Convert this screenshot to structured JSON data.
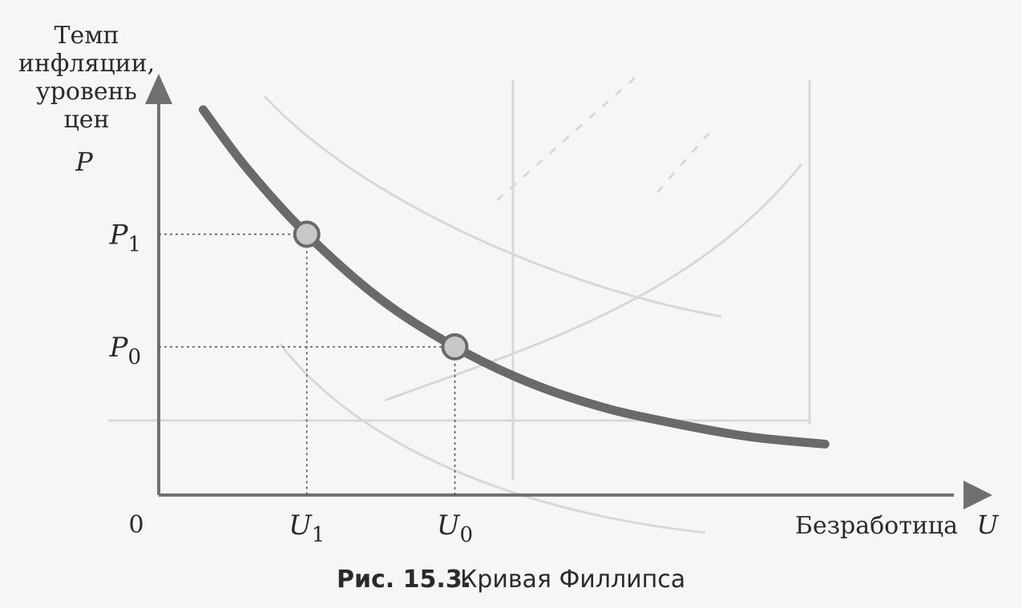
{
  "chart_data": {
    "type": "line",
    "ylabel_lines": [
      "Темп",
      "инфляции,",
      "уровень",
      "цен"
    ],
    "ylabel_symbol": "P",
    "xlabel": "Безработица",
    "xlabel_symbol": "U",
    "origin_label": "0",
    "x_ticks": [
      {
        "letter": "U",
        "sub": "1",
        "value": 1.0
      },
      {
        "letter": "U",
        "sub": "0",
        "value": 2.0
      }
    ],
    "y_ticks": [
      {
        "letter": "P",
        "sub": "1",
        "value": 2.2
      },
      {
        "letter": "P",
        "sub": "0",
        "value": 1.25
      }
    ],
    "xlim": [
      0,
      5.5
    ],
    "ylim": [
      0,
      3.5
    ],
    "series": [
      {
        "x": [
          0.3,
          0.6,
          1.0,
          1.5,
          2.0,
          2.5,
          3.0,
          3.5,
          4.0,
          4.5
        ],
        "y": [
          3.25,
          2.75,
          2.2,
          1.65,
          1.25,
          0.95,
          0.74,
          0.6,
          0.49,
          0.43
        ]
      }
    ],
    "points": [
      {
        "x": 1.0,
        "y": 2.2
      },
      {
        "x": 2.0,
        "y": 1.25
      }
    ],
    "colors": {
      "curve": "#6a6a6a",
      "point_fill": "#c8c8c8",
      "axis": "#707070",
      "guide": "#555555"
    }
  },
  "caption": {
    "number": "Рис. 15.3.",
    "title": "Кривая Филлипса"
  }
}
